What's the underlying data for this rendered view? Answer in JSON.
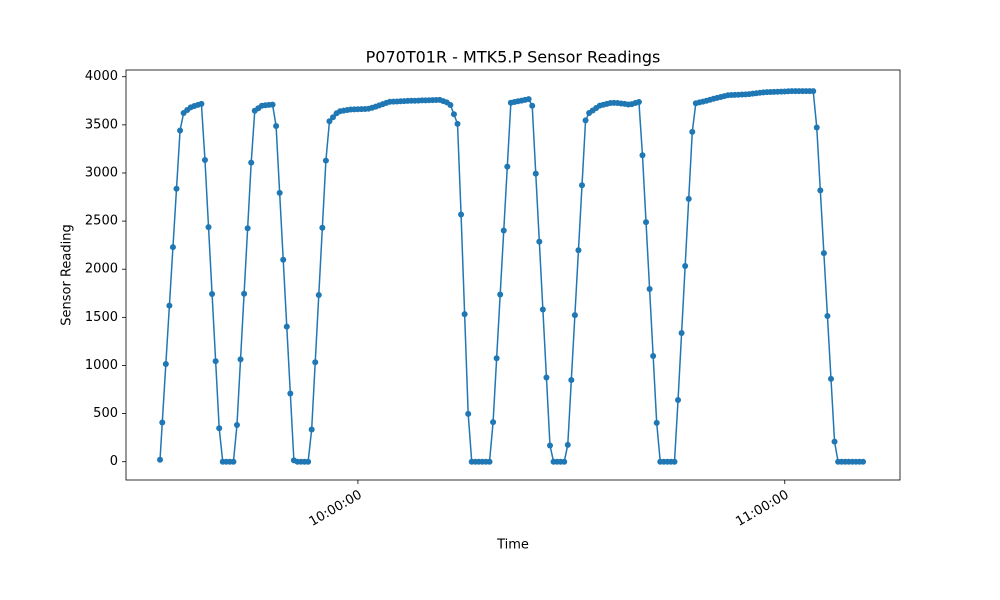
{
  "chart_data": {
    "type": "line",
    "title": "P070T01R - MTK5.P Sensor Readings",
    "x_label": "Time",
    "y_label": "Sensor Reading",
    "marker": true,
    "xlim": [
      "09:27:24",
      "11:16:12"
    ],
    "xticks": [
      "10:00:00",
      "11:00:00"
    ],
    "ylim": [
      -190,
      4070
    ],
    "yticks": [
      0,
      500,
      1000,
      1500,
      2000,
      2500,
      3000,
      3500,
      4000
    ],
    "x": [
      "09:32:11",
      "09:32:30",
      "09:33:00",
      "09:33:30",
      "09:34:00",
      "09:34:30",
      "09:35:00",
      "09:35:30",
      "09:36:00",
      "09:36:30",
      "09:37:00",
      "09:37:30",
      "09:38:00",
      "09:38:30",
      "09:39:00",
      "09:39:30",
      "09:40:00",
      "09:40:30",
      "09:41:00",
      "09:41:30",
      "09:42:00",
      "09:42:30",
      "09:43:00",
      "09:43:30",
      "09:44:00",
      "09:44:30",
      "09:45:00",
      "09:45:30",
      "09:46:00",
      "09:46:30",
      "09:47:00",
      "09:47:30",
      "09:48:00",
      "09:48:30",
      "09:49:00",
      "09:49:30",
      "09:50:00",
      "09:50:30",
      "09:51:00",
      "09:51:30",
      "09:52:00",
      "09:52:30",
      "09:53:00",
      "09:53:30",
      "09:54:00",
      "09:54:30",
      "09:55:00",
      "09:55:30",
      "09:56:00",
      "09:56:30",
      "09:57:00",
      "09:57:30",
      "09:58:00",
      "09:58:30",
      "09:59:00",
      "09:59:30",
      "10:00:00",
      "10:00:30",
      "10:01:00",
      "10:01:30",
      "10:02:00",
      "10:02:30",
      "10:03:00",
      "10:03:30",
      "10:04:00",
      "10:04:30",
      "10:05:00",
      "10:05:30",
      "10:06:00",
      "10:06:30",
      "10:07:00",
      "10:07:30",
      "10:08:00",
      "10:08:30",
      "10:09:00",
      "10:09:30",
      "10:10:00",
      "10:10:30",
      "10:11:00",
      "10:11:30",
      "10:12:00",
      "10:12:30",
      "10:13:00",
      "10:13:30",
      "10:14:00",
      "10:14:30",
      "10:15:00",
      "10:15:30",
      "10:16:00",
      "10:16:30",
      "10:17:00",
      "10:17:30",
      "10:18:00",
      "10:18:30",
      "10:19:00",
      "10:19:30",
      "10:20:00",
      "10:20:30",
      "10:21:00",
      "10:21:30",
      "10:22:00",
      "10:22:30",
      "10:23:00",
      "10:23:30",
      "10:24:00",
      "10:24:30",
      "10:25:00",
      "10:25:30",
      "10:26:00",
      "10:26:30",
      "10:27:00",
      "10:27:30",
      "10:28:00",
      "10:28:30",
      "10:29:00",
      "10:29:30",
      "10:30:00",
      "10:30:30",
      "10:31:00",
      "10:31:30",
      "10:32:00",
      "10:32:30",
      "10:33:00",
      "10:33:30",
      "10:34:00",
      "10:34:30",
      "10:35:00",
      "10:35:30",
      "10:36:00",
      "10:36:30",
      "10:37:00",
      "10:37:30",
      "10:38:00",
      "10:38:30",
      "10:39:00",
      "10:39:30",
      "10:40:00",
      "10:40:30",
      "10:41:00",
      "10:41:30",
      "10:42:00",
      "10:42:30",
      "10:43:00",
      "10:43:30",
      "10:44:00",
      "10:44:30",
      "10:45:00",
      "10:45:30",
      "10:46:00",
      "10:46:30",
      "10:47:00",
      "10:47:30",
      "10:48:00",
      "10:48:30",
      "10:49:00",
      "10:49:30",
      "10:50:00",
      "10:50:30",
      "10:51:00",
      "10:51:30",
      "10:52:00",
      "10:52:30",
      "10:53:00",
      "10:53:30",
      "10:54:00",
      "10:54:30",
      "10:55:00",
      "10:55:30",
      "10:56:00",
      "10:56:30",
      "10:57:00",
      "10:57:30",
      "10:58:00",
      "10:58:30",
      "10:59:00",
      "10:59:30",
      "11:00:00",
      "11:00:30",
      "11:01:00",
      "11:01:30",
      "11:02:00",
      "11:02:30",
      "11:03:00",
      "11:03:30",
      "11:04:00",
      "11:04:30",
      "11:05:00",
      "11:05:30",
      "11:06:00",
      "11:06:30",
      "11:07:00",
      "11:07:30",
      "11:08:00",
      "11:08:30",
      "11:09:00",
      "11:09:30",
      "11:10:00",
      "11:10:30",
      "11:11:00"
    ],
    "series": [
      {
        "color": "#1f77b4",
        "values": [
          20,
          408,
          1015,
          1622,
          2229,
          2836,
          3442,
          3623,
          3655,
          3682,
          3696,
          3707,
          3718,
          3135,
          2438,
          1742,
          1045,
          348,
          0,
          0,
          0,
          0,
          382,
          1063,
          1745,
          2426,
          3108,
          3646,
          3673,
          3699,
          3704,
          3707,
          3710,
          3488,
          2793,
          2098,
          1404,
          709,
          14,
          0,
          0,
          0,
          0,
          335,
          1034,
          1732,
          2431,
          3129,
          3538,
          3579,
          3620,
          3641,
          3648,
          3655,
          3660,
          3661,
          3662,
          3663,
          3665,
          3668,
          3678,
          3690,
          3703,
          3715,
          3728,
          3740,
          3742,
          3743,
          3745,
          3747,
          3749,
          3750,
          3751,
          3752,
          3754,
          3755,
          3756,
          3757,
          3758,
          3760,
          3747,
          3733,
          3706,
          3610,
          3510,
          2568,
          1533,
          497,
          0,
          0,
          0,
          0,
          0,
          0,
          411,
          1075,
          1738,
          2402,
          3066,
          3730,
          3737,
          3745,
          3752,
          3760,
          3767,
          3699,
          2993,
          2287,
          1581,
          875,
          169,
          0,
          0,
          0,
          0,
          175,
          849,
          1523,
          2197,
          2872,
          3546,
          3623,
          3649,
          3675,
          3700,
          3709,
          3718,
          3727,
          3729,
          3727,
          3722,
          3718,
          3712,
          3716,
          3727,
          3738,
          3184,
          2489,
          1794,
          1098,
          403,
          0,
          0,
          0,
          0,
          0,
          641,
          1337,
          2034,
          2731,
          3427,
          3725,
          3733,
          3742,
          3751,
          3761,
          3771,
          3780,
          3789,
          3798,
          3807,
          3810,
          3812,
          3813,
          3815,
          3817,
          3819,
          3824,
          3829,
          3833,
          3838,
          3840,
          3841,
          3843,
          3844,
          3845,
          3847,
          3849,
          3850,
          3850,
          3850,
          3850,
          3850,
          3850,
          3850,
          3472,
          2819,
          2167,
          1514,
          861,
          209,
          0,
          0,
          0,
          0,
          0,
          0,
          0,
          0
        ]
      }
    ]
  }
}
